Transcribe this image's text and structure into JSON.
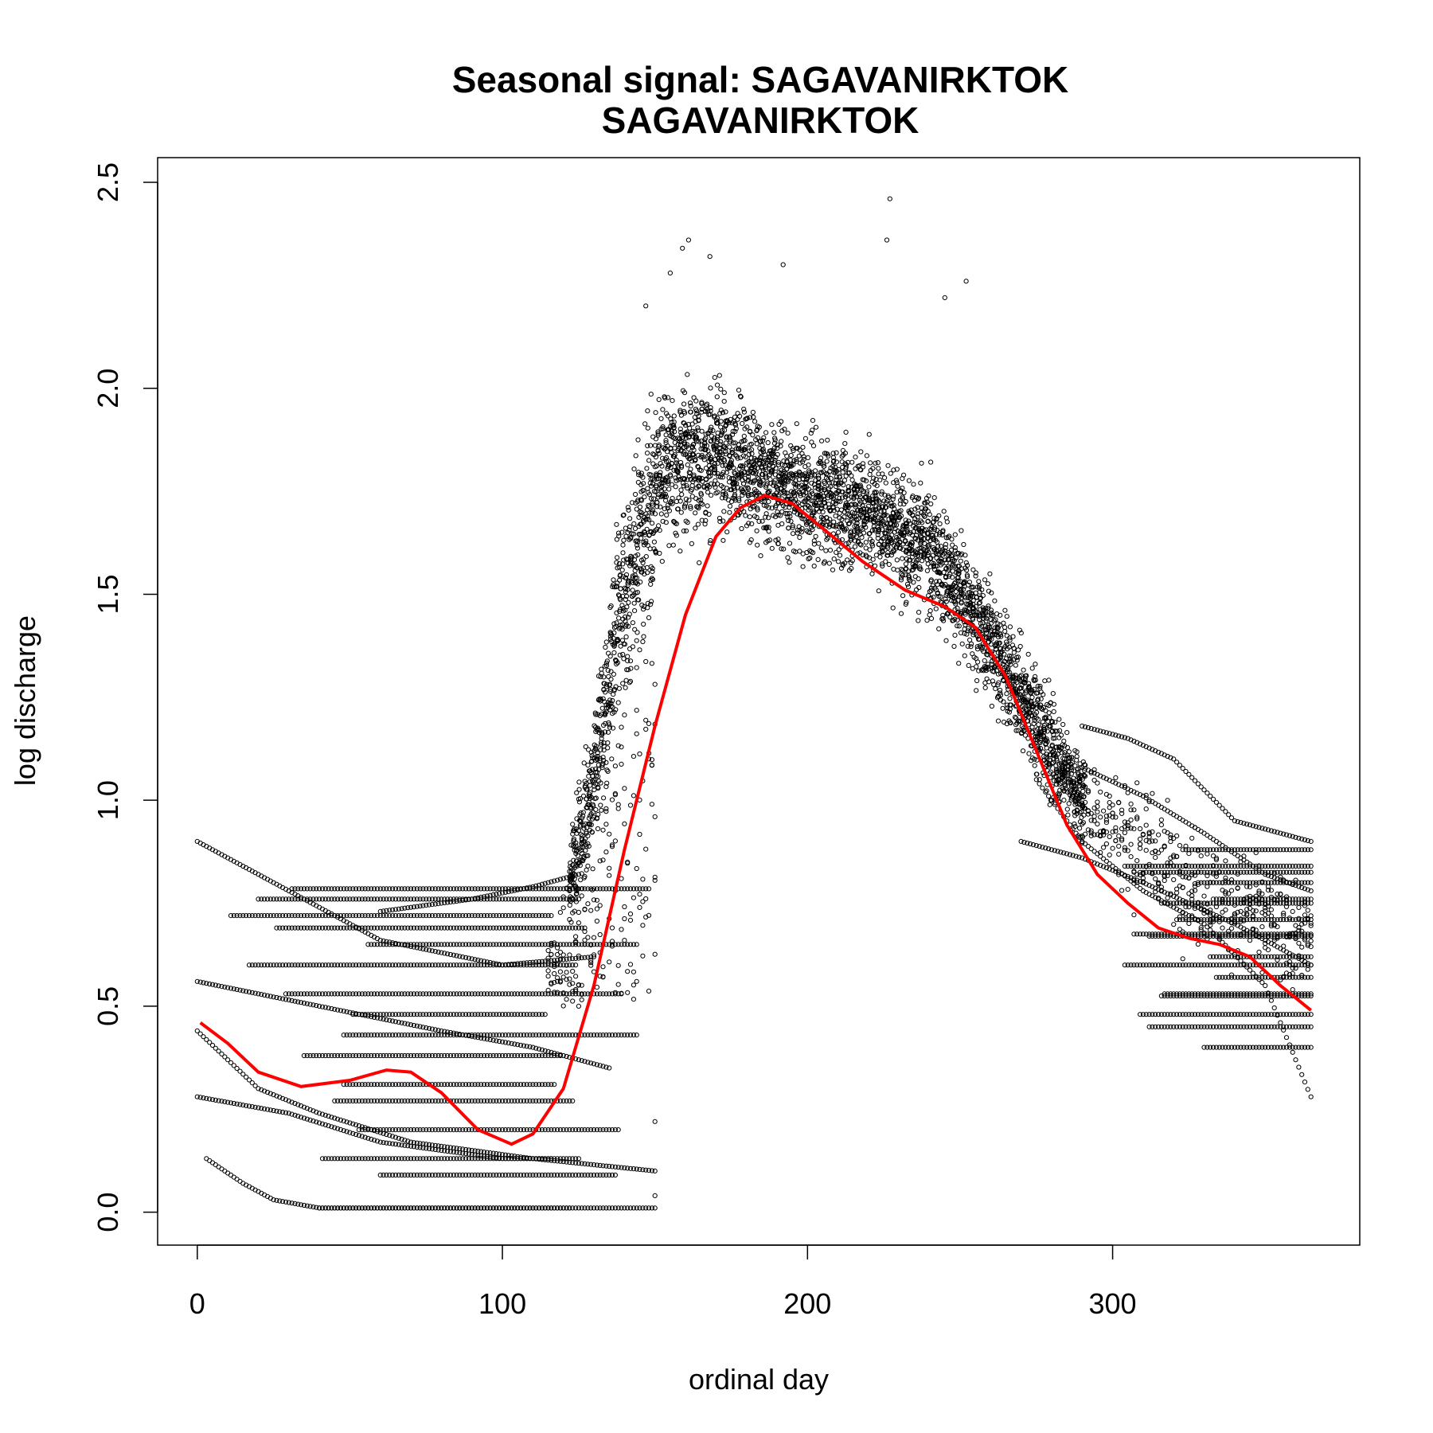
{
  "chart_data": {
    "type": "scatter",
    "title_line1": "Seasonal signal: SAGAVANIRKTOK",
    "title_line2": "SAGAVANIRKTOK",
    "xlabel": "ordinal day",
    "ylabel": "log discharge",
    "xlim": [
      -13,
      381
    ],
    "ylim": [
      -0.08,
      2.56
    ],
    "xticks": [
      "0",
      "100",
      "200",
      "300"
    ],
    "yticks": [
      "0.0",
      "0.5",
      "1.0",
      "1.5",
      "2.0",
      "2.5"
    ],
    "grid": false,
    "legend": "none",
    "point_color": "#000000",
    "smooth_color": "#ff0000",
    "smooth_curve": [
      {
        "x": 1,
        "y": 0.46
      },
      {
        "x": 10,
        "y": 0.41
      },
      {
        "x": 20,
        "y": 0.34
      },
      {
        "x": 34,
        "y": 0.305
      },
      {
        "x": 50,
        "y": 0.32
      },
      {
        "x": 62,
        "y": 0.345
      },
      {
        "x": 70,
        "y": 0.34
      },
      {
        "x": 80,
        "y": 0.29
      },
      {
        "x": 92,
        "y": 0.2
      },
      {
        "x": 103,
        "y": 0.165
      },
      {
        "x": 110,
        "y": 0.19
      },
      {
        "x": 120,
        "y": 0.3
      },
      {
        "x": 130,
        "y": 0.55
      },
      {
        "x": 140,
        "y": 0.88
      },
      {
        "x": 150,
        "y": 1.18
      },
      {
        "x": 160,
        "y": 1.45
      },
      {
        "x": 170,
        "y": 1.64
      },
      {
        "x": 178,
        "y": 1.71
      },
      {
        "x": 186,
        "y": 1.74
      },
      {
        "x": 195,
        "y": 1.72
      },
      {
        "x": 205,
        "y": 1.66
      },
      {
        "x": 218,
        "y": 1.58
      },
      {
        "x": 232,
        "y": 1.51
      },
      {
        "x": 245,
        "y": 1.47
      },
      {
        "x": 255,
        "y": 1.42
      },
      {
        "x": 265,
        "y": 1.3
      },
      {
        "x": 275,
        "y": 1.12
      },
      {
        "x": 285,
        "y": 0.94
      },
      {
        "x": 295,
        "y": 0.82
      },
      {
        "x": 305,
        "y": 0.75
      },
      {
        "x": 315,
        "y": 0.69
      },
      {
        "x": 325,
        "y": 0.665
      },
      {
        "x": 335,
        "y": 0.65
      },
      {
        "x": 345,
        "y": 0.62
      },
      {
        "x": 355,
        "y": 0.55
      },
      {
        "x": 365,
        "y": 0.49
      }
    ],
    "plateau_levels": [
      0.01,
      0.09,
      0.13,
      0.2,
      0.27,
      0.31,
      0.38,
      0.43,
      0.48,
      0.53,
      0.6,
      0.65,
      0.69,
      0.72,
      0.76,
      0.785
    ],
    "decline_curves": [
      {
        "x": [
          0,
          30,
          60,
          100,
          130
        ],
        "y": [
          0.9,
          0.78,
          0.66,
          0.6,
          0.62
        ]
      },
      {
        "x": [
          0,
          40,
          80,
          110,
          135
        ],
        "y": [
          0.56,
          0.5,
          0.44,
          0.4,
          0.35
        ]
      },
      {
        "x": [
          0,
          20,
          40,
          70,
          110,
          150
        ],
        "y": [
          0.44,
          0.3,
          0.24,
          0.17,
          0.13,
          0.1
        ]
      },
      {
        "x": [
          3,
          15,
          25,
          40,
          80,
          150
        ],
        "y": [
          0.13,
          0.07,
          0.03,
          0.01,
          0.01,
          0.01
        ]
      },
      {
        "x": [
          0,
          30,
          60,
          100,
          125
        ],
        "y": [
          0.28,
          0.24,
          0.17,
          0.13,
          0.13
        ]
      },
      {
        "x": [
          60,
          90,
          110,
          125
        ],
        "y": [
          0.73,
          0.76,
          0.79,
          0.82
        ]
      },
      {
        "x": [
          290,
          305,
          320,
          340,
          365
        ],
        "y": [
          1.18,
          1.15,
          1.1,
          0.95,
          0.9
        ]
      },
      {
        "x": [
          290,
          310,
          330,
          350,
          365
        ],
        "y": [
          1.08,
          1.01,
          0.92,
          0.82,
          0.78
        ]
      },
      {
        "x": [
          275,
          290,
          310,
          330,
          350,
          365
        ],
        "y": [
          1.05,
          0.9,
          0.78,
          0.7,
          0.55,
          0.28
        ]
      },
      {
        "x": [
          270,
          290,
          310,
          340,
          365
        ],
        "y": [
          0.9,
          0.86,
          0.8,
          0.7,
          0.6
        ]
      }
    ],
    "scatter_cloud": [
      {
        "x": [
          122,
          128,
          133,
          138,
          145,
          152,
          160,
          170,
          180,
          190,
          200,
          210,
          220,
          230,
          240,
          250,
          260,
          270,
          280,
          290
        ],
        "mean": [
          0.8,
          1.0,
          1.2,
          1.45,
          1.65,
          1.8,
          1.84,
          1.84,
          1.8,
          1.77,
          1.74,
          1.72,
          1.7,
          1.66,
          1.6,
          1.5,
          1.38,
          1.25,
          1.12,
          1.0
        ],
        "spread": [
          0.15,
          0.2,
          0.28,
          0.3,
          0.28,
          0.24,
          0.22,
          0.2,
          0.2,
          0.18,
          0.18,
          0.18,
          0.17,
          0.18,
          0.18,
          0.17,
          0.16,
          0.15,
          0.14,
          0.12
        ]
      }
    ],
    "outliers": [
      {
        "x": 227,
        "y": 2.46
      },
      {
        "x": 226,
        "y": 2.36
      },
      {
        "x": 161,
        "y": 2.36
      },
      {
        "x": 159,
        "y": 2.34
      },
      {
        "x": 168,
        "y": 2.32
      },
      {
        "x": 192,
        "y": 2.3
      },
      {
        "x": 252,
        "y": 2.26
      },
      {
        "x": 155,
        "y": 2.28
      },
      {
        "x": 245,
        "y": 2.22
      },
      {
        "x": 147,
        "y": 2.2
      },
      {
        "x": 150,
        "y": 0.04
      },
      {
        "x": 150,
        "y": 0.22
      }
    ]
  }
}
